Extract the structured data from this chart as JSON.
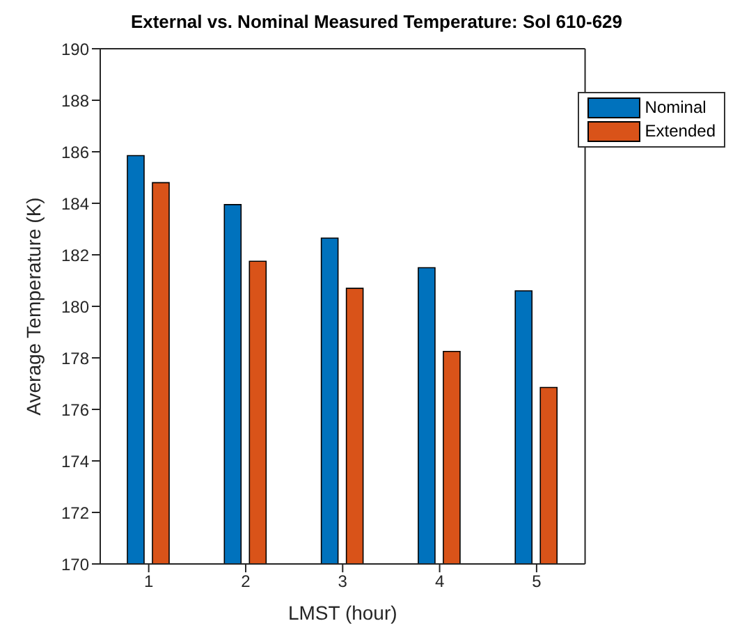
{
  "chart_data": {
    "type": "bar",
    "title": "External vs. Nominal Measured Temperature: Sol 610-629",
    "xlabel": "LMST (hour)",
    "ylabel": "Average Temperature (K)",
    "categories": [
      "1",
      "2",
      "3",
      "4",
      "5"
    ],
    "series": [
      {
        "name": "Nominal",
        "color": "#0072bd",
        "values": [
          185.85,
          183.95,
          182.65,
          181.5,
          180.6
        ]
      },
      {
        "name": "Extended",
        "color": "#d95319",
        "values": [
          184.8,
          181.75,
          180.7,
          178.25,
          176.85
        ]
      }
    ],
    "ylim": [
      170,
      190
    ],
    "yticks": [
      170,
      172,
      174,
      176,
      178,
      180,
      182,
      184,
      186,
      188,
      190
    ],
    "grid": false,
    "legend": "top right"
  }
}
